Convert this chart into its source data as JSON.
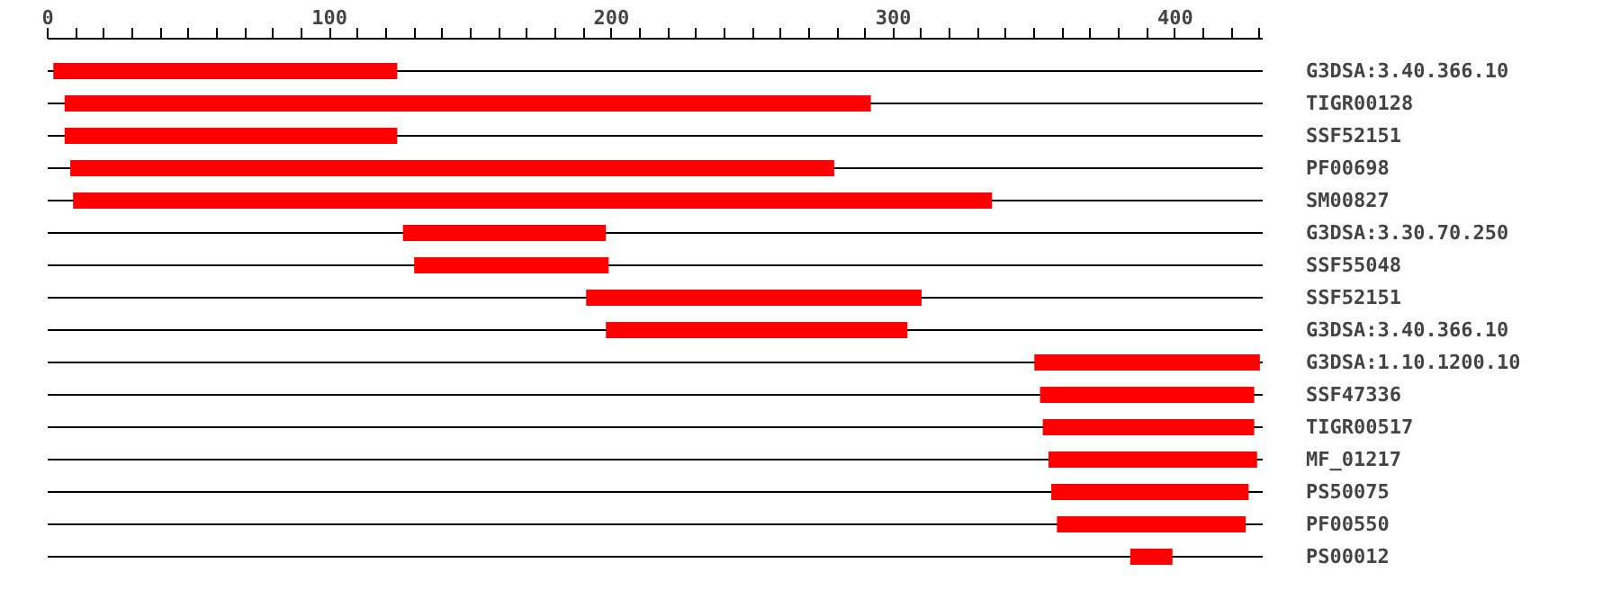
{
  "chart_data": {
    "type": "bar",
    "orientation": "horizontal",
    "categories": [
      "G3DSA:3.40.366.10",
      "TIGR00128",
      "SSF52151",
      "PF00698",
      "SM00827",
      "G3DSA:3.30.70.250",
      "SSF55048",
      "SSF52151",
      "G3DSA:3.40.366.10",
      "G3DSA:1.10.1200.10",
      "SSF47336",
      "TIGR00517",
      "MF_01217",
      "PS50075",
      "PF00550",
      "PS00012"
    ],
    "base": [
      2,
      6,
      6,
      8,
      9,
      126,
      130,
      191,
      198,
      350,
      352,
      353,
      355,
      356,
      358,
      384
    ],
    "values": [
      122,
      286,
      118,
      271,
      326,
      72,
      69,
      119,
      107,
      80,
      76,
      75,
      74,
      70,
      67,
      15
    ],
    "color": "#ff0000",
    "xlim": [
      0,
      431
    ],
    "xticks": [
      0,
      {
        "value": 10,
        "label": null
      },
      {
        "value": 20,
        "label": null
      },
      {
        "value": 30,
        "label": null
      },
      {
        "value": 40,
        "label": null
      },
      {
        "value": 50,
        "label": null
      },
      {
        "value": 60,
        "label": null
      },
      {
        "value": 70,
        "label": null
      },
      {
        "value": 80,
        "label": null
      },
      {
        "value": 90,
        "label": null
      },
      100,
      {
        "value": 110,
        "label": null
      },
      {
        "value": 120,
        "label": null
      },
      {
        "value": 130,
        "label": null
      },
      {
        "value": 140,
        "label": null
      },
      {
        "value": 150,
        "label": null
      },
      {
        "value": 160,
        "label": null
      },
      {
        "value": 170,
        "label": null
      },
      {
        "value": 180,
        "label": null
      },
      {
        "value": 190,
        "label": null
      },
      200,
      {
        "value": 210,
        "label": null
      },
      {
        "value": 220,
        "label": null
      },
      {
        "value": 230,
        "label": null
      },
      {
        "value": 240,
        "label": null
      },
      {
        "value": 250,
        "label": null
      },
      {
        "value": 260,
        "label": null
      },
      {
        "value": 270,
        "label": null
      },
      {
        "value": 280,
        "label": null
      },
      {
        "value": 290,
        "label": null
      },
      300,
      {
        "value": 310,
        "label": null
      },
      {
        "value": 320,
        "label": null
      },
      {
        "value": 330,
        "label": null
      },
      {
        "value": 340,
        "label": null
      },
      {
        "value": 350,
        "label": null
      },
      {
        "value": 360,
        "label": null
      },
      {
        "value": 370,
        "label": null
      },
      {
        "value": 380,
        "label": null
      },
      {
        "value": 390,
        "label": null
      },
      400,
      {
        "value": 410,
        "label": null
      },
      {
        "value": 420,
        "label": null
      },
      {
        "value": 430,
        "label": null
      }
    ],
    "grid": "y"
  }
}
